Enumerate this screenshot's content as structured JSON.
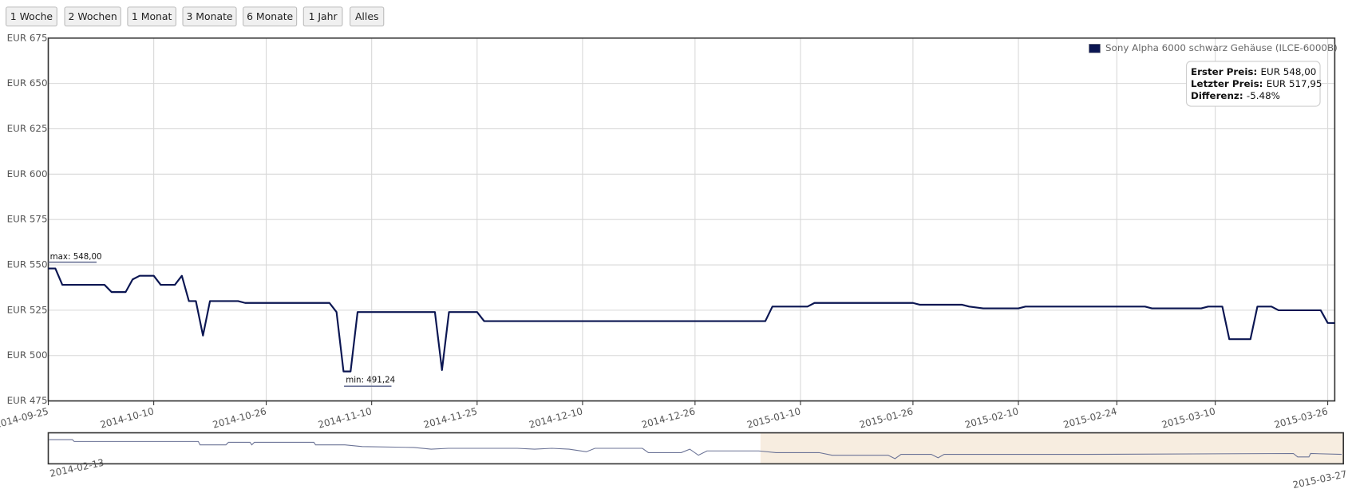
{
  "buttons": [
    "1 Woche",
    "2 Wochen",
    "1 Monat",
    "3 Monate",
    "6 Monate",
    "1 Jahr",
    "Alles"
  ],
  "chart_data": {
    "type": "line",
    "x": [
      "2014-09-25",
      "2014-09-26",
      "2014-09-27",
      "2014-10-03",
      "2014-10-04",
      "2014-10-06",
      "2014-10-07",
      "2014-10-08",
      "2014-10-10",
      "2014-10-11",
      "2014-10-13",
      "2014-10-14",
      "2014-10-15",
      "2014-10-16",
      "2014-10-17",
      "2014-10-18",
      "2014-10-22",
      "2014-10-23",
      "2014-11-04",
      "2014-11-05",
      "2014-11-06",
      "2014-11-07",
      "2014-11-08",
      "2014-11-19",
      "2014-11-20",
      "2014-11-21",
      "2014-11-25",
      "2014-11-26",
      "2015-01-05",
      "2015-01-06",
      "2015-01-11",
      "2015-01-12",
      "2015-01-26",
      "2015-01-27",
      "2015-02-02",
      "2015-02-03",
      "2015-02-05",
      "2015-02-10",
      "2015-02-11",
      "2015-02-28",
      "2015-03-01",
      "2015-03-08",
      "2015-03-09",
      "2015-03-11",
      "2015-03-12",
      "2015-03-15",
      "2015-03-16",
      "2015-03-18",
      "2015-03-19",
      "2015-03-25",
      "2015-03-26",
      "2015-03-27"
    ],
    "series": [
      {
        "name": "Sony Alpha 6000 schwarz Gehäuse (ILCE-6000B)",
        "color": "#0b1652",
        "values": [
          548,
          548,
          539,
          539,
          535,
          535,
          542,
          544,
          544,
          539,
          539,
          544,
          530,
          530,
          511,
          530,
          530,
          529,
          529,
          524,
          491.24,
          491.24,
          524,
          524,
          492,
          524,
          524,
          519,
          519,
          527,
          527,
          529,
          529,
          528,
          528,
          527,
          526,
          526,
          527,
          527,
          526,
          526,
          527,
          527,
          509,
          509,
          527,
          527,
          525,
          525,
          518,
          517.95
        ]
      }
    ],
    "xlim": [
      "2014-09-25",
      "2015-03-27"
    ],
    "xticks": [
      "2014-09-25",
      "2014-10-10",
      "2014-10-26",
      "2014-11-10",
      "2014-11-25",
      "2014-12-10",
      "2014-12-26",
      "2015-01-10",
      "2015-01-26",
      "2015-02-10",
      "2015-02-24",
      "2015-03-10",
      "2015-03-26"
    ],
    "ylim": [
      475,
      675
    ],
    "yticks": [
      {
        "value": 475,
        "label": "EUR 475"
      },
      {
        "value": 500,
        "label": "EUR 500"
      },
      {
        "value": 525,
        "label": "EUR 525"
      },
      {
        "value": 550,
        "label": "EUR 550"
      },
      {
        "value": 575,
        "label": "EUR 575"
      },
      {
        "value": 600,
        "label": "EUR 600"
      },
      {
        "value": 625,
        "label": "EUR 625"
      },
      {
        "value": 650,
        "label": "EUR 650"
      },
      {
        "value": 675,
        "label": "EUR 675"
      }
    ],
    "grid": true,
    "legend": "upper right",
    "annotations": [
      "max: 548,00",
      "min: 491,24"
    ],
    "info": [
      {
        "label": "Erster Preis:",
        "text": "EUR 548,00"
      },
      {
        "label": "Letzter Preis:",
        "text": "EUR 517,95"
      },
      {
        "label": "Differenz:",
        "text": "-5.48%"
      }
    ]
  },
  "navigator": {
    "start": "2014-02-13",
    "end": "2015-03-27"
  }
}
